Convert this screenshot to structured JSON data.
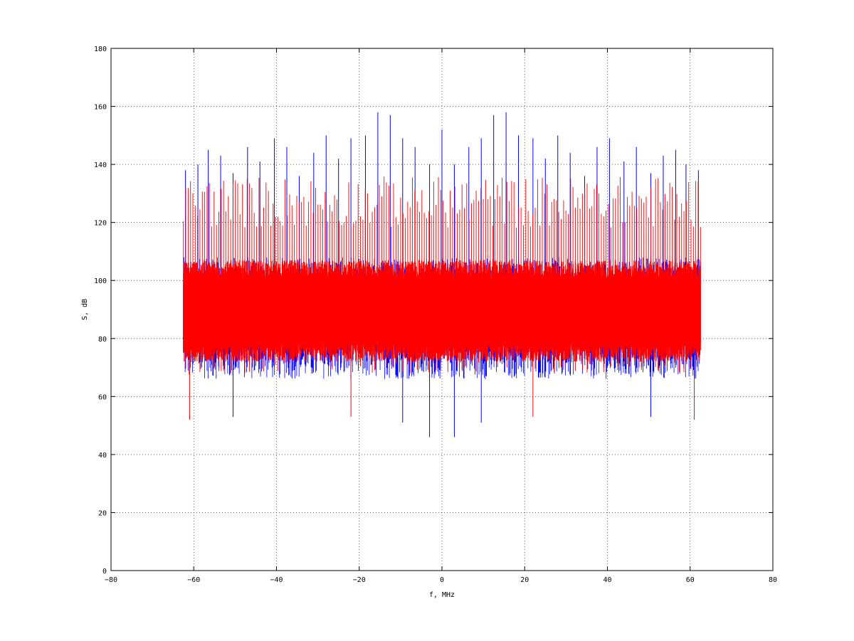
{
  "chart_data": {
    "type": "line",
    "title": "",
    "xlabel": "f, MHz",
    "ylabel": "S, dB",
    "xlim": [
      -80,
      80
    ],
    "ylim": [
      0,
      180
    ],
    "x_ticks": [
      -80,
      -60,
      -40,
      -20,
      0,
      20,
      40,
      60,
      80
    ],
    "y_ticks": [
      0,
      20,
      40,
      60,
      80,
      100,
      120,
      140,
      160,
      180
    ],
    "x_tick_labels": [
      "−80",
      "−60",
      "−40",
      "−20",
      "0",
      "20",
      "40",
      "60",
      "80"
    ],
    "y_tick_labels": [
      "0",
      "20",
      "40",
      "60",
      "80",
      "100",
      "120",
      "140",
      "160",
      "180"
    ],
    "grid": true,
    "grid_style": "dotted",
    "legend": "none",
    "x_range_of_data": [
      -62.5,
      62.5
    ],
    "series": [
      {
        "color": "#0000ff",
        "description_of_values": "noise floor ~70-105 dB, spikes up to ~158 dB",
        "peaks": [
          {
            "x": -62.0,
            "y": 138
          },
          {
            "x": -59.0,
            "y": 140
          },
          {
            "x": -56.5,
            "y": 145
          },
          {
            "x": -53.5,
            "y": 143
          },
          {
            "x": -50.5,
            "y": 137
          },
          {
            "x": -47.0,
            "y": 146
          },
          {
            "x": -44.0,
            "y": 141
          },
          {
            "x": -40.5,
            "y": 149
          },
          {
            "x": -37.5,
            "y": 146
          },
          {
            "x": -34.5,
            "y": 136
          },
          {
            "x": -31.0,
            "y": 144
          },
          {
            "x": -28.0,
            "y": 150
          },
          {
            "x": -25.0,
            "y": 142
          },
          {
            "x": -22.0,
            "y": 149
          },
          {
            "x": -18.5,
            "y": 150
          },
          {
            "x": -15.5,
            "y": 158
          },
          {
            "x": -12.5,
            "y": 157
          },
          {
            "x": -9.5,
            "y": 149
          },
          {
            "x": -6.5,
            "y": 146
          },
          {
            "x": -3.0,
            "y": 140
          },
          {
            "x": 0.0,
            "y": 152
          },
          {
            "x": 3.0,
            "y": 140
          },
          {
            "x": 6.5,
            "y": 146
          },
          {
            "x": 9.5,
            "y": 149
          },
          {
            "x": 12.5,
            "y": 157
          },
          {
            "x": 15.5,
            "y": 158
          },
          {
            "x": 18.5,
            "y": 150
          },
          {
            "x": 22.0,
            "y": 149
          },
          {
            "x": 25.0,
            "y": 142
          },
          {
            "x": 28.0,
            "y": 150
          },
          {
            "x": 31.0,
            "y": 144
          },
          {
            "x": 34.5,
            "y": 136
          },
          {
            "x": 37.5,
            "y": 146
          },
          {
            "x": 40.5,
            "y": 149
          },
          {
            "x": 44.0,
            "y": 141
          },
          {
            "x": 47.0,
            "y": 146
          },
          {
            "x": 50.5,
            "y": 137
          },
          {
            "x": 53.5,
            "y": 143
          },
          {
            "x": 56.5,
            "y": 145
          },
          {
            "x": 59.0,
            "y": 140
          },
          {
            "x": 62.0,
            "y": 138
          }
        ],
        "minima": [
          {
            "x": -3.0,
            "y": 46
          },
          {
            "x": 3.0,
            "y": 46
          },
          {
            "x": -9.5,
            "y": 51
          },
          {
            "x": 9.5,
            "y": 51
          },
          {
            "x": -50.5,
            "y": 53
          },
          {
            "x": 50.5,
            "y": 53
          }
        ]
      },
      {
        "color": "#ff0000",
        "description_of_values": "dense noise band ~75-105 dB, regular spikes ~120-135 dB",
        "peak_level_range": [
          118,
          136
        ],
        "floor_band": [
          75,
          105
        ],
        "minima": [
          {
            "x": -61.0,
            "y": 52
          },
          {
            "x": 61.0,
            "y": 52
          },
          {
            "x": -22.0,
            "y": 53
          },
          {
            "x": 22.0,
            "y": 53
          }
        ]
      }
    ]
  }
}
